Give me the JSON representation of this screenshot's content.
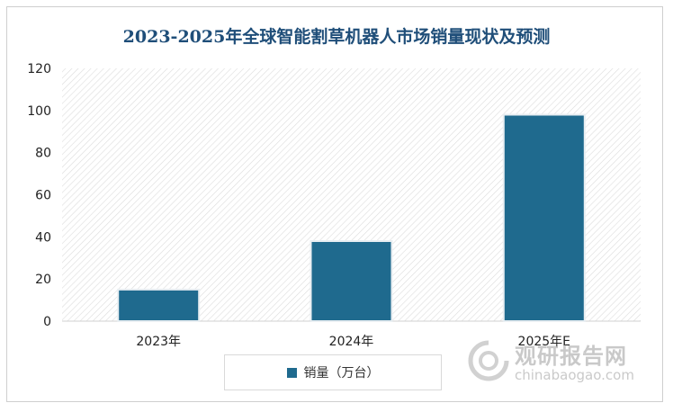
{
  "chart_data": {
    "type": "bar",
    "title": "2023-2025年全球智能割草机器人市场销量现状及预测",
    "categories": [
      "2023年",
      "2024年",
      "2025年E"
    ],
    "series": [
      {
        "name": "销量（万台）",
        "values": [
          15,
          38,
          98
        ],
        "color": "#1f6a8e"
      }
    ],
    "yticks": [
      0,
      20,
      40,
      60,
      80,
      100,
      120
    ],
    "ylim": [
      0,
      120
    ],
    "grid": false,
    "legend_position": "bottom"
  },
  "watermark": {
    "name_cn": "观研报告网",
    "site": "chinabaogao.com"
  }
}
